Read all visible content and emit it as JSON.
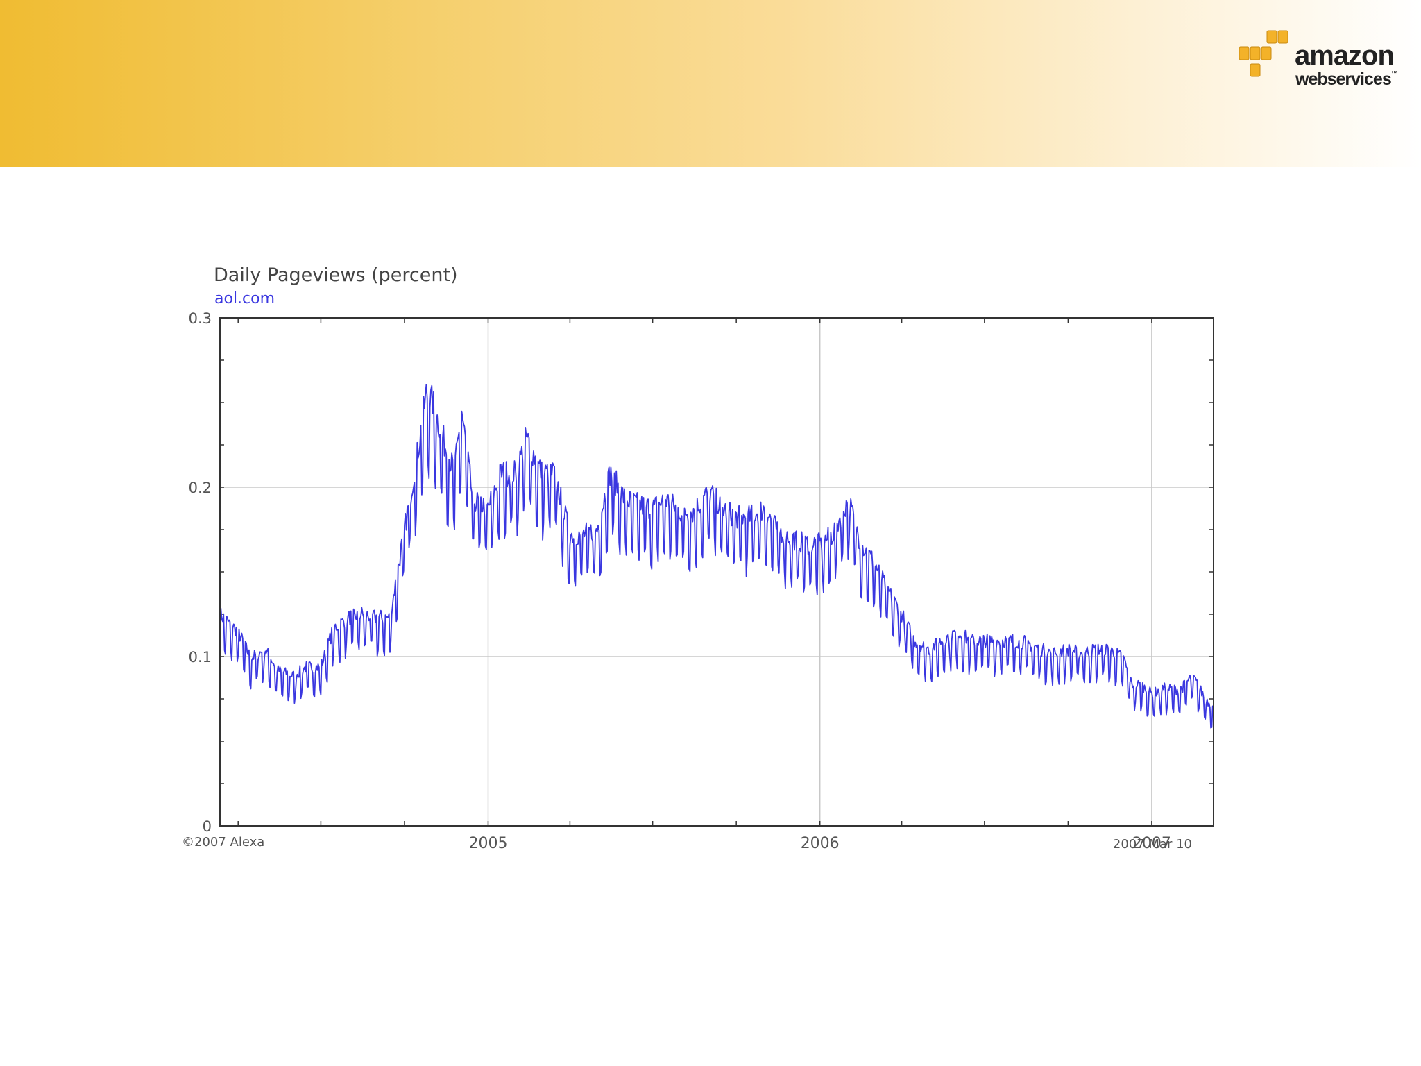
{
  "logo": {
    "text_main": "amazon",
    "text_sub": "webservices",
    "trademark": "™",
    "cube_color": "#f3b229"
  },
  "banner": {
    "gradient_start": "#f0bc32",
    "gradient_end": "#ffffff"
  },
  "chart_data": {
    "type": "line",
    "title": "Daily Pageviews (percent)",
    "subtitle": "aol.com",
    "footer_left": "©2007 Alexa",
    "footer_right": "2007 Mar 10",
    "line_color": "#3a37e0",
    "grid": true,
    "ylim": [
      0,
      0.3
    ],
    "yticks": [
      0,
      0.1,
      0.2,
      0.3
    ],
    "ytick_labels": [
      "0",
      "0.1",
      "0.2",
      "0.3"
    ],
    "xlim": [
      "2004-03-12",
      "2007-03-10"
    ],
    "xticks": [
      "2005-01-01",
      "2006-01-01",
      "2007-01-01"
    ],
    "xtick_labels": [
      "2005",
      "2006",
      "2007"
    ],
    "series": [
      {
        "values": [
          [
            "2004-03-12",
            0.12
          ],
          [
            "2004-04-01",
            0.11
          ],
          [
            "2004-04-15",
            0.095
          ],
          [
            "2004-05-01",
            0.1
          ],
          [
            "2004-05-15",
            0.088
          ],
          [
            "2004-06-01",
            0.085
          ],
          [
            "2004-06-15",
            0.09
          ],
          [
            "2004-07-01",
            0.09
          ],
          [
            "2004-07-15",
            0.112
          ],
          [
            "2004-08-01",
            0.118
          ],
          [
            "2004-08-15",
            0.12
          ],
          [
            "2004-09-01",
            0.118
          ],
          [
            "2004-09-15",
            0.118
          ],
          [
            "2004-10-01",
            0.168
          ],
          [
            "2004-10-15",
            0.21
          ],
          [
            "2004-10-25",
            0.245
          ],
          [
            "2004-11-01",
            0.24
          ],
          [
            "2004-11-15",
            0.215
          ],
          [
            "2004-11-25",
            0.2
          ],
          [
            "2004-12-03",
            0.235
          ],
          [
            "2004-12-15",
            0.185
          ],
          [
            "2005-01-01",
            0.18
          ],
          [
            "2005-01-15",
            0.2
          ],
          [
            "2005-02-01",
            0.2
          ],
          [
            "2005-02-12",
            0.22
          ],
          [
            "2005-03-01",
            0.2
          ],
          [
            "2005-03-15",
            0.2
          ],
          [
            "2005-04-01",
            0.165
          ],
          [
            "2005-04-15",
            0.165
          ],
          [
            "2005-05-01",
            0.168
          ],
          [
            "2005-05-15",
            0.2
          ],
          [
            "2005-06-01",
            0.185
          ],
          [
            "2005-06-15",
            0.182
          ],
          [
            "2005-07-01",
            0.18
          ],
          [
            "2005-07-15",
            0.185
          ],
          [
            "2005-08-01",
            0.178
          ],
          [
            "2005-08-15",
            0.178
          ],
          [
            "2005-09-01",
            0.19
          ],
          [
            "2005-09-15",
            0.18
          ],
          [
            "2005-10-01",
            0.175
          ],
          [
            "2005-10-15",
            0.175
          ],
          [
            "2005-11-01",
            0.18
          ],
          [
            "2005-11-15",
            0.168
          ],
          [
            "2005-12-01",
            0.163
          ],
          [
            "2005-12-15",
            0.16
          ],
          [
            "2006-01-01",
            0.16
          ],
          [
            "2006-01-15",
            0.165
          ],
          [
            "2006-02-01",
            0.185
          ],
          [
            "2006-02-15",
            0.16
          ],
          [
            "2006-03-01",
            0.15
          ],
          [
            "2006-03-15",
            0.135
          ],
          [
            "2006-04-01",
            0.12
          ],
          [
            "2006-04-15",
            0.105
          ],
          [
            "2006-05-01",
            0.1
          ],
          [
            "2006-05-15",
            0.105
          ],
          [
            "2006-06-01",
            0.11
          ],
          [
            "2006-06-15",
            0.105
          ],
          [
            "2006-07-01",
            0.105
          ],
          [
            "2006-07-15",
            0.105
          ],
          [
            "2006-08-01",
            0.105
          ],
          [
            "2006-08-15",
            0.104
          ],
          [
            "2006-09-01",
            0.1
          ],
          [
            "2006-09-15",
            0.098
          ],
          [
            "2006-10-01",
            0.1
          ],
          [
            "2006-10-15",
            0.098
          ],
          [
            "2006-11-01",
            0.1
          ],
          [
            "2006-11-15",
            0.1
          ],
          [
            "2006-12-01",
            0.095
          ],
          [
            "2006-12-10",
            0.08
          ],
          [
            "2006-12-20",
            0.08
          ],
          [
            "2007-01-01",
            0.075
          ],
          [
            "2007-01-15",
            0.078
          ],
          [
            "2007-02-01",
            0.077
          ],
          [
            "2007-02-15",
            0.085
          ],
          [
            "2007-03-01",
            0.072
          ],
          [
            "2007-03-10",
            0.067
          ]
        ]
      }
    ]
  }
}
